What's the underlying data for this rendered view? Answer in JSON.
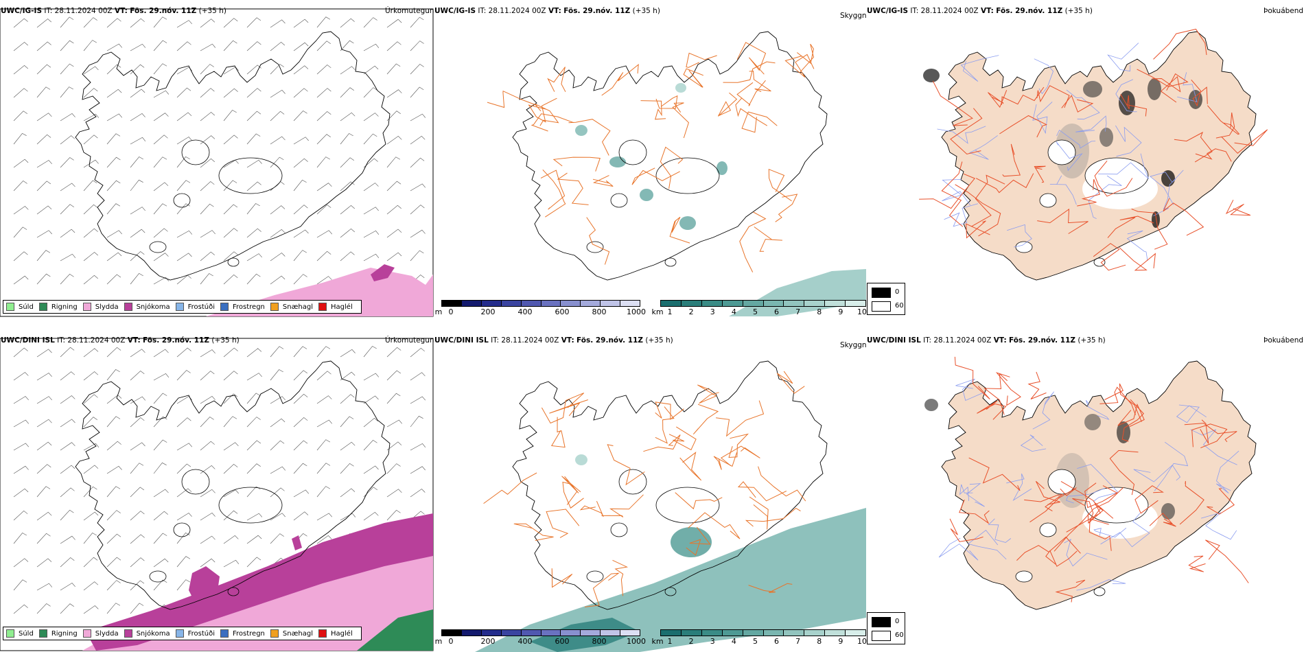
{
  "rows": [
    {
      "model": "UWC/IG-IS",
      "it_label": "IT:",
      "it_value": "28.11.2024 00Z",
      "vt_label": "VT:",
      "vt_value": "Fös. 29.nóv. 11Z",
      "lead": "(+35 h)"
    },
    {
      "model": "UWC/DINI ISL",
      "it_label": "IT:",
      "it_value": "28.11.2024 00Z",
      "vt_label": "VT:",
      "vt_value": "Fös. 29.nóv. 11Z",
      "lead": "(+35 h)"
    }
  ],
  "panel_titles": {
    "precip": "Úrkomutegund",
    "visibility": "Skyggni",
    "fog": "Þokuábendi"
  },
  "precip_legend": [
    {
      "label": "Súld",
      "color": "#90ee90"
    },
    {
      "label": "Rigning",
      "color": "#2e8b57"
    },
    {
      "label": "Slydda",
      "color": "#f0a8d8"
    },
    {
      "label": "Snjókoma",
      "color": "#b8409a"
    },
    {
      "label": "Frostúði",
      "color": "#87b5e8"
    },
    {
      "label": "Frostregn",
      "color": "#3a6fc0"
    },
    {
      "label": "Snæhagl",
      "color": "#f0a020"
    },
    {
      "label": "Haglél",
      "color": "#e01010"
    }
  ],
  "ceiling_scale": {
    "unit": "m",
    "ticks": [
      "0",
      "200",
      "400",
      "600",
      "800",
      "1000"
    ],
    "colors": [
      "#000000",
      "#131a6e",
      "#242c8c",
      "#3a44a0",
      "#5058b0",
      "#6a72c0",
      "#8890cf",
      "#a4aadc",
      "#c0c4e8",
      "#dcdff3"
    ]
  },
  "visibility_scale": {
    "unit": "km",
    "ticks": [
      "1",
      "2",
      "3",
      "4",
      "5",
      "6",
      "7",
      "8",
      "9",
      "10"
    ],
    "colors": [
      "#1a6e6e",
      "#2a7e7a",
      "#3a8c86",
      "#4e9a94",
      "#64a8a2",
      "#7ab6b0",
      "#92c4be",
      "#a8d2cc",
      "#c0e0da",
      "#d8eeea"
    ]
  },
  "fog_legend": {
    "max_label": "0",
    "min_label": "60",
    "max_color": "#000000",
    "min_color": "#ffffff"
  },
  "colors": {
    "land_fog": "#f5dcc8",
    "roads": "#e8742a",
    "rivers": "#8a9cf0",
    "wind_barb": "#555555"
  }
}
